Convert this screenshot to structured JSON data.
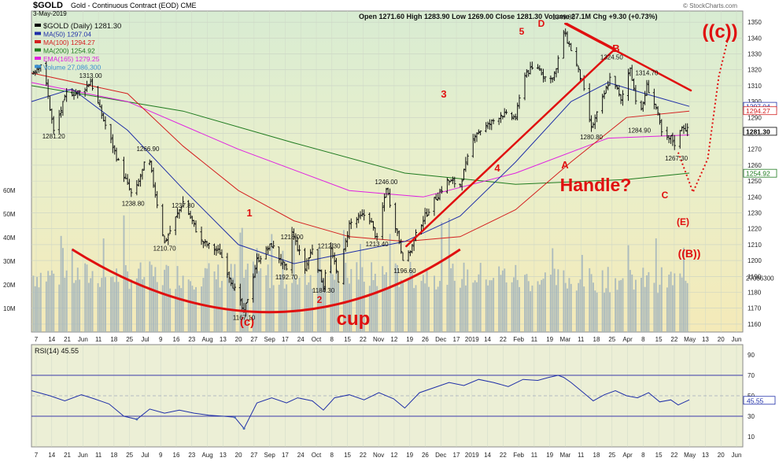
{
  "chart_data": {
    "type": "bar",
    "symbol": "$GOLD",
    "title": "Gold - Continuous Contract (EOD)",
    "exchange": "CME",
    "date": "3-May-2019",
    "ohlc": {
      "open": "Open 1271.60",
      "high": "High 1283.90",
      "low": "Low 1269.00",
      "close": "Close 1281.30",
      "volume": "Volume 27.1M",
      "change": "Chg +9.30 (+0.73%)"
    },
    "watermark": "© StockCharts.com",
    "legend": [
      {
        "text": "$GOLD (Daily) 1281.30",
        "color": "#000000"
      },
      {
        "text": "MA(50) 1297.04",
        "color": "#1f2fa8"
      },
      {
        "text": "MA(100) 1294.27",
        "color": "#d42020"
      },
      {
        "text": "MA(200) 1254.92",
        "color": "#1e7a1e"
      },
      {
        "text": "EMA(165) 1279.25",
        "color": "#e020e0"
      },
      {
        "text": "Volume 27,086,300",
        "color": "#3b8fd0"
      }
    ],
    "price_axis": [
      "1350",
      "1340",
      "1330",
      "1320",
      "1310",
      "1300",
      "1290",
      "1280",
      "1270",
      "1260",
      "1250",
      "1240",
      "1230",
      "1220",
      "1210",
      "1200",
      "1190",
      "1180",
      "1170",
      "1160"
    ],
    "ylim": [
      1155,
      1357
    ],
    "volume_axis": [
      "60M",
      "50M",
      "40M",
      "30M",
      "20M",
      "10M"
    ],
    "x_labels": [
      "7",
      "14",
      "21",
      "Jun",
      "11",
      "18",
      "25",
      "Jul",
      "9",
      "16",
      "23",
      "Aug",
      "13",
      "20",
      "27",
      "Sep",
      "17",
      "24",
      "Oct",
      "8",
      "15",
      "22",
      "Nov",
      "12",
      "19",
      "26",
      "Dec",
      "17",
      "2019",
      "14",
      "22",
      "Feb",
      "11",
      "19",
      "Mar",
      "11",
      "18",
      "25",
      "Apr",
      "8",
      "15",
      "22",
      "May",
      "13",
      "20",
      "Jun"
    ],
    "price_labels": [
      {
        "day": 10,
        "text": "1313.00",
        "value": 1313.0
      },
      {
        "day": -10,
        "text": "1281.20",
        "value": 1281.2
      },
      {
        "day": 41,
        "text": "1266.90",
        "value": 1266.9
      },
      {
        "day": 33,
        "text": "1238.80",
        "value": 1238.8
      },
      {
        "day": 60,
        "text": "1237.80",
        "value": 1237.8
      },
      {
        "day": 50,
        "text": "1210.70",
        "value": 1210.7
      },
      {
        "day": 119,
        "text": "1218.00",
        "value": 1218.0
      },
      {
        "day": 139,
        "text": "1212.30",
        "value": 1212.3
      },
      {
        "day": 116,
        "text": "1192.70",
        "value": 1192.7
      },
      {
        "day": 136,
        "text": "1184.30",
        "value": 1184.3
      },
      {
        "day": 93,
        "text": "1167.10",
        "value": 1167.1
      },
      {
        "day": 170,
        "text": "1246.00",
        "value": 1246.0
      },
      {
        "day": 165,
        "text": "1213.40",
        "value": 1213.4
      },
      {
        "day": 180,
        "text": "1196.60",
        "value": 1196.6
      },
      {
        "day": 266,
        "text": "1349.80",
        "value": 1349.8
      },
      {
        "day": 292,
        "text": "1324.50",
        "value": 1324.5
      },
      {
        "day": 281,
        "text": "1280.80",
        "value": 1280.8
      },
      {
        "day": 311,
        "text": "1314.70",
        "value": 1314.7
      },
      {
        "day": 307,
        "text": "1284.90",
        "value": 1284.9
      },
      {
        "day": 327,
        "text": "1267.30",
        "value": 1267.3
      }
    ],
    "last_values": [
      {
        "text": "1297.04",
        "value": 1297.04,
        "color": "#1f2fa8"
      },
      {
        "text": "1294.27",
        "value": 1294.27,
        "color": "#d42020"
      },
      {
        "text": "1281.30",
        "value": 1281.3,
        "color": "#000000"
      },
      {
        "text": "1254.92",
        "value": 1254.92,
        "color": "#1e7a1e"
      }
    ],
    "volume_last": {
      "text": "27086300",
      "value": 27086300
    },
    "annotations": [
      {
        "text": "5",
        "size": "big"
      },
      {
        "text": "D",
        "size": "big"
      },
      {
        "text": "3",
        "size": "big"
      },
      {
        "text": "4",
        "size": "big"
      },
      {
        "text": "1",
        "size": "big"
      },
      {
        "text": "2",
        "size": "big"
      },
      {
        "text": "(c)",
        "size": "big"
      },
      {
        "text": "cup",
        "size": "huge"
      },
      {
        "text": "B",
        "size": "big"
      },
      {
        "text": "A",
        "size": "big"
      },
      {
        "text": "Handle?",
        "size": "huge"
      },
      {
        "text": "C",
        "size": "big"
      },
      {
        "text": "(E)",
        "size": "big"
      },
      {
        "text": "((B))",
        "size": "big"
      },
      {
        "text": "((c))",
        "size": "huge"
      }
    ],
    "keypoints": [
      {
        "d": -22,
        "v": 1318
      },
      {
        "d": -16,
        "v": 1325
      },
      {
        "d": -10,
        "v": 1281
      },
      {
        "d": -3,
        "v": 1305
      },
      {
        "d": 5,
        "v": 1306
      },
      {
        "d": 10,
        "v": 1313
      },
      {
        "d": 15,
        "v": 1295
      },
      {
        "d": 25,
        "v": 1262
      },
      {
        "d": 33,
        "v": 1239
      },
      {
        "d": 41,
        "v": 1267
      },
      {
        "d": 50,
        "v": 1211
      },
      {
        "d": 60,
        "v": 1237
      },
      {
        "d": 70,
        "v": 1212
      },
      {
        "d": 80,
        "v": 1205
      },
      {
        "d": 93,
        "v": 1167
      },
      {
        "d": 100,
        "v": 1200
      },
      {
        "d": 108,
        "v": 1210
      },
      {
        "d": 116,
        "v": 1193
      },
      {
        "d": 119,
        "v": 1218
      },
      {
        "d": 126,
        "v": 1195
      },
      {
        "d": 130,
        "v": 1208
      },
      {
        "d": 136,
        "v": 1184
      },
      {
        "d": 139,
        "v": 1212
      },
      {
        "d": 144,
        "v": 1188
      },
      {
        "d": 150,
        "v": 1223
      },
      {
        "d": 160,
        "v": 1230
      },
      {
        "d": 165,
        "v": 1213
      },
      {
        "d": 170,
        "v": 1246
      },
      {
        "d": 175,
        "v": 1222
      },
      {
        "d": 180,
        "v": 1197
      },
      {
        "d": 188,
        "v": 1222
      },
      {
        "d": 196,
        "v": 1238
      },
      {
        "d": 203,
        "v": 1250
      },
      {
        "d": 210,
        "v": 1248
      },
      {
        "d": 218,
        "v": 1280
      },
      {
        "d": 225,
        "v": 1285
      },
      {
        "d": 232,
        "v": 1292
      },
      {
        "d": 240,
        "v": 1290
      },
      {
        "d": 245,
        "v": 1318
      },
      {
        "d": 252,
        "v": 1322
      },
      {
        "d": 258,
        "v": 1312
      },
      {
        "d": 262,
        "v": 1320
      },
      {
        "d": 266,
        "v": 1344
      },
      {
        "d": 271,
        "v": 1330
      },
      {
        "d": 276,
        "v": 1312
      },
      {
        "d": 281,
        "v": 1283
      },
      {
        "d": 286,
        "v": 1298
      },
      {
        "d": 292,
        "v": 1318
      },
      {
        "d": 297,
        "v": 1300
      },
      {
        "d": 302,
        "v": 1322
      },
      {
        "d": 307,
        "v": 1288
      },
      {
        "d": 311,
        "v": 1310
      },
      {
        "d": 316,
        "v": 1296
      },
      {
        "d": 320,
        "v": 1275
      },
      {
        "d": 324,
        "v": 1277
      },
      {
        "d": 327,
        "v": 1272
      },
      {
        "d": 330,
        "v": 1285
      },
      {
        "d": 334,
        "v": 1281
      }
    ],
    "ma50": [
      [
        -22,
        1300
      ],
      [
        0,
        1308
      ],
      [
        30,
        1282
      ],
      [
        60,
        1245
      ],
      [
        90,
        1210
      ],
      [
        120,
        1198
      ],
      [
        150,
        1205
      ],
      [
        180,
        1212
      ],
      [
        210,
        1228
      ],
      [
        240,
        1262
      ],
      [
        270,
        1300
      ],
      [
        290,
        1312
      ],
      [
        310,
        1305
      ],
      [
        334,
        1297
      ]
    ],
    "ma100": [
      [
        -22,
        1318
      ],
      [
        30,
        1305
      ],
      [
        60,
        1272
      ],
      [
        90,
        1244
      ],
      [
        120,
        1225
      ],
      [
        150,
        1215
      ],
      [
        180,
        1212
      ],
      [
        210,
        1215
      ],
      [
        240,
        1232
      ],
      [
        270,
        1262
      ],
      [
        300,
        1290
      ],
      [
        334,
        1294
      ]
    ],
    "ma200": [
      [
        -22,
        1310
      ],
      [
        60,
        1294
      ],
      [
        120,
        1274
      ],
      [
        180,
        1255
      ],
      [
        240,
        1248
      ],
      [
        300,
        1251
      ],
      [
        334,
        1255
      ]
    ],
    "ema165": [
      [
        -22,
        1312
      ],
      [
        30,
        1300
      ],
      [
        90,
        1270
      ],
      [
        150,
        1244
      ],
      [
        190,
        1240
      ],
      [
        240,
        1255
      ],
      [
        290,
        1277
      ],
      [
        334,
        1279
      ]
    ],
    "rsi": {
      "label": "RSI(14) 45.55",
      "last_value": "45.55",
      "levels": [
        "90",
        "70",
        "50",
        "30",
        "10"
      ],
      "ylim": [
        0,
        100
      ],
      "overbought": 70,
      "oversold": 30,
      "points": [
        [
          -22,
          55
        ],
        [
          -12,
          50
        ],
        [
          -4,
          45
        ],
        [
          5,
          51
        ],
        [
          12,
          47
        ],
        [
          20,
          42
        ],
        [
          28,
          30
        ],
        [
          35,
          27
        ],
        [
          42,
          37
        ],
        [
          50,
          33
        ],
        [
          58,
          36
        ],
        [
          66,
          33
        ],
        [
          74,
          31
        ],
        [
          82,
          30
        ],
        [
          88,
          29
        ],
        [
          93,
          18
        ],
        [
          100,
          43
        ],
        [
          108,
          48
        ],
        [
          116,
          43
        ],
        [
          122,
          48
        ],
        [
          130,
          45
        ],
        [
          136,
          36
        ],
        [
          142,
          48
        ],
        [
          150,
          51
        ],
        [
          158,
          46
        ],
        [
          166,
          53
        ],
        [
          174,
          47
        ],
        [
          180,
          38
        ],
        [
          188,
          53
        ],
        [
          196,
          58
        ],
        [
          204,
          63
        ],
        [
          212,
          60
        ],
        [
          220,
          66
        ],
        [
          228,
          63
        ],
        [
          236,
          59
        ],
        [
          244,
          66
        ],
        [
          252,
          65
        ],
        [
          258,
          68
        ],
        [
          263,
          70
        ],
        [
          266,
          68
        ],
        [
          270,
          63
        ],
        [
          276,
          54
        ],
        [
          282,
          45
        ],
        [
          288,
          51
        ],
        [
          294,
          55
        ],
        [
          300,
          50
        ],
        [
          306,
          48
        ],
        [
          312,
          53
        ],
        [
          318,
          44
        ],
        [
          324,
          46
        ],
        [
          328,
          41
        ],
        [
          334,
          46
        ]
      ]
    }
  }
}
